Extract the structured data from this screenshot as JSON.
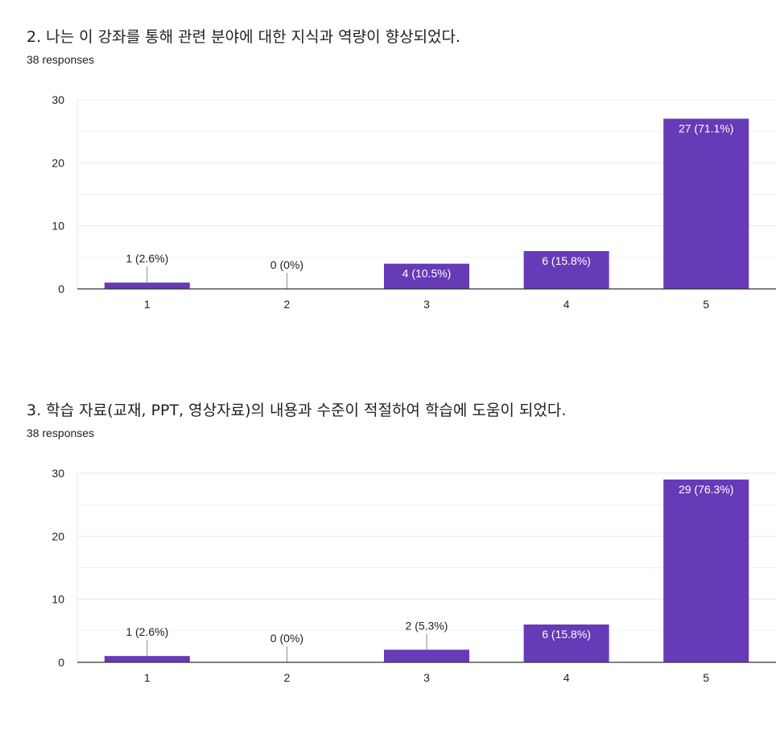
{
  "questions": [
    {
      "title": "2. 나는 이 강좌를 통해 관련 분야에 대한 지식과 역량이 향상되었다.",
      "responses": "38 responses"
    },
    {
      "title": "3. 학습 자료(교재, PPT, 영상자료)의 내용과 수준이 적절하여 학습에 도움이 되었다.",
      "responses": "38 responses"
    }
  ],
  "colors": {
    "bar": "#673ab7",
    "grid": "#e8e8e8",
    "axis": "#333333",
    "text": "#202124"
  },
  "chart_data": [
    {
      "type": "bar",
      "categories": [
        "1",
        "2",
        "3",
        "4",
        "5"
      ],
      "values": [
        1,
        0,
        4,
        6,
        27
      ],
      "data_labels": [
        "1 (2.6%)",
        "0 (0%)",
        "4 (10.5%)",
        "6 (15.8%)",
        "27 (71.1%)"
      ],
      "yticks": [
        "0",
        "10",
        "20",
        "30"
      ],
      "ylim": [
        0,
        30
      ],
      "grid": true
    },
    {
      "type": "bar",
      "categories": [
        "1",
        "2",
        "3",
        "4",
        "5"
      ],
      "values": [
        1,
        0,
        2,
        6,
        29
      ],
      "data_labels": [
        "1 (2.6%)",
        "0 (0%)",
        "2 (5.3%)",
        "6 (15.8%)",
        "29 (76.3%)"
      ],
      "yticks": [
        "0",
        "10",
        "20",
        "30"
      ],
      "ylim": [
        0,
        30
      ],
      "grid": true
    }
  ]
}
